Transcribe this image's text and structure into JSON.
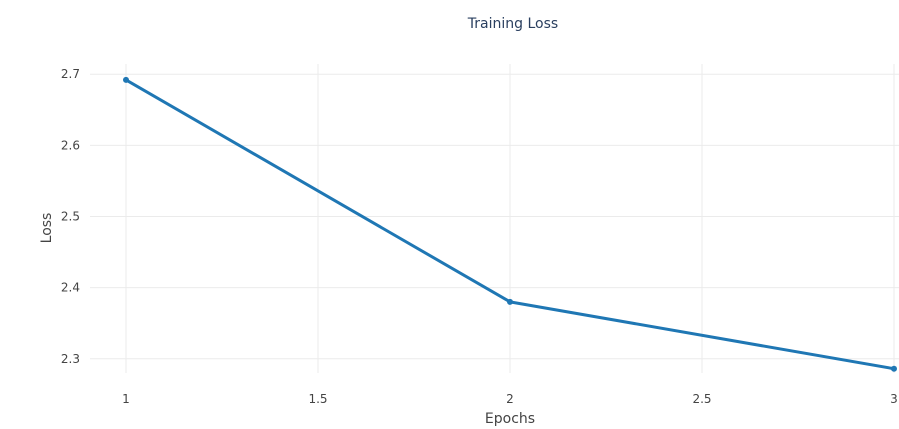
{
  "chart_data": {
    "type": "line",
    "title": "Training Loss",
    "xlabel": "Epochs",
    "ylabel": "Loss",
    "xlim": [
      1,
      3
    ],
    "ylim": [
      2.28,
      2.72
    ],
    "x_ticks": [
      1,
      1.5,
      2,
      2.5,
      3
    ],
    "x_tick_labels": [
      "1",
      "1.5",
      "2",
      "2.5",
      "3"
    ],
    "y_ticks": [
      2.3,
      2.4,
      2.5,
      2.6,
      2.7
    ],
    "y_tick_labels": [
      "2.3",
      "2.4",
      "2.5",
      "2.6",
      "2.7"
    ],
    "grid": true,
    "series": [
      {
        "x": [
          1,
          2,
          3
        ],
        "values": [
          2.692,
          2.38,
          2.286
        ],
        "color": "#1f77b4"
      }
    ]
  }
}
